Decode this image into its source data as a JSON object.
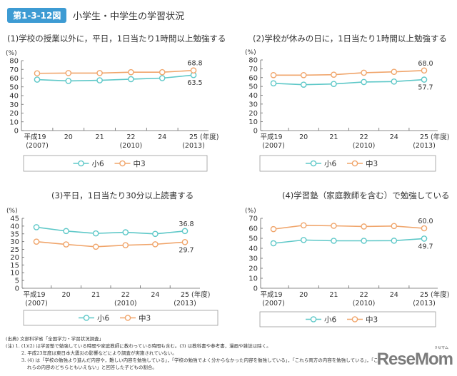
{
  "figure": {
    "badge": "第1-3-12図",
    "title": "小学生・中学生の学習状況"
  },
  "colors": {
    "sho6": "#5ec8c8",
    "chu3": "#f0a56b"
  },
  "chart_data": [
    {
      "type": "line",
      "title": "(1)学校の授業以外に，平日，1日当たり1時間以上勉強する",
      "ylabel": "(%)",
      "xunit": "(年度)",
      "categories": [
        "平成19",
        "20",
        "21",
        "22",
        "24",
        "25"
      ],
      "subcategories": [
        "(2007)",
        "",
        "",
        "(2010)",
        "",
        "(2013)"
      ],
      "ylim": [
        0,
        80
      ],
      "yticks": [
        0,
        10,
        20,
        30,
        40,
        50,
        60,
        70,
        80
      ],
      "grid": false,
      "legend": "bottom",
      "series": [
        {
          "name": "小6",
          "values": [
            58.3,
            56.8,
            57.5,
            58.8,
            60.0,
            63.5
          ],
          "last_label": "63.5"
        },
        {
          "name": "中3",
          "values": [
            65.5,
            65.8,
            65.8,
            66.8,
            66.8,
            68.8
          ],
          "last_label": "68.8"
        }
      ]
    },
    {
      "type": "line",
      "title": "(2)学校が休みの日に，1日当たり1時間以上勉強する",
      "ylabel": "(%)",
      "xunit": "(年度)",
      "categories": [
        "平成19",
        "20",
        "21",
        "22",
        "24",
        "25"
      ],
      "subcategories": [
        "(2007)",
        "",
        "",
        "(2010)",
        "",
        "(2013)"
      ],
      "ylim": [
        0,
        80
      ],
      "yticks": [
        0,
        10,
        20,
        30,
        40,
        50,
        60,
        70,
        80
      ],
      "grid": false,
      "legend": "bottom",
      "series": [
        {
          "name": "小6",
          "values": [
            53.5,
            52.0,
            52.8,
            55.0,
            55.5,
            57.7
          ],
          "last_label": "57.7"
        },
        {
          "name": "中3",
          "values": [
            62.8,
            62.8,
            63.3,
            65.5,
            66.5,
            68.0
          ],
          "last_label": "68.0"
        }
      ]
    },
    {
      "type": "line",
      "title": "(3)平日，1日当たり30分以上読書する",
      "ylabel": "(%)",
      "xunit": "(年度)",
      "categories": [
        "平成19",
        "20",
        "21",
        "22",
        "24",
        "25"
      ],
      "subcategories": [
        "(2007)",
        "",
        "",
        "(2010)",
        "",
        "(2013)"
      ],
      "ylim": [
        0,
        45
      ],
      "yticks": [
        0,
        5,
        10,
        15,
        20,
        25,
        30,
        35,
        40,
        45
      ],
      "grid": false,
      "legend": "bottom",
      "series": [
        {
          "name": "小6",
          "values": [
            39.3,
            36.8,
            35.3,
            36.0,
            35.0,
            36.8
          ],
          "last_label": "36.8"
        },
        {
          "name": "中3",
          "values": [
            30.0,
            28.2,
            26.7,
            27.7,
            28.3,
            29.7
          ],
          "last_label": "29.7"
        }
      ]
    },
    {
      "type": "line",
      "title": "(4)学習塾（家庭教師を含む）で勉強している",
      "ylabel": "(%)",
      "xunit": "(年度)",
      "categories": [
        "平成19",
        "20",
        "21",
        "22",
        "24",
        "25"
      ],
      "subcategories": [
        "(2007)",
        "",
        "",
        "(2010)",
        "",
        "(2013)"
      ],
      "ylim": [
        0,
        70
      ],
      "yticks": [
        0,
        10,
        20,
        30,
        40,
        50,
        60,
        70
      ],
      "grid": false,
      "legend": "bottom",
      "series": [
        {
          "name": "小6",
          "values": [
            45.0,
            48.3,
            47.5,
            47.5,
            47.6,
            49.7
          ],
          "last_label": "49.7"
        },
        {
          "name": "中3",
          "values": [
            59.2,
            63.0,
            62.5,
            61.8,
            62.3,
            60.0
          ],
          "last_label": "60.0"
        }
      ]
    }
  ],
  "notes": {
    "source": "(出典) 文部科学省「全国学力・学習状況調査」",
    "note1": "(注) 1. (1)(2) は学習塾で勉強している時間や家庭教師に教わっている時間も含む。(3) は教科書や参考書，漫画や雑誌は除く。",
    "note2": "2. 平成23年度は東日本大震災の影響などにより調査が実施されていない。",
    "note3": "3. (4) は「学校の勉強より進んだ内容や，難しい内容を勉強している」，「学校の勉強でよく分からなかった内容を勉強している」，「これら両方の内容を勉強している」，「こ",
    "note3b": "れらの内容のどちらともいえない」と回答した子どもの割合。"
  },
  "watermark": {
    "text": "ReseMom",
    "ruby": "リセマム"
  }
}
